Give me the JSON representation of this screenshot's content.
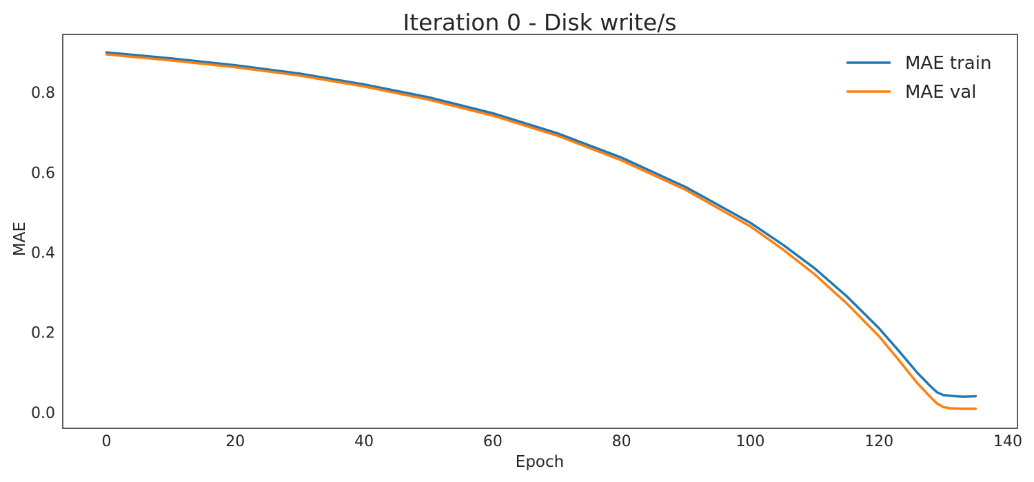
{
  "chart_data": {
    "type": "line",
    "title": "Iteration 0 - Disk write/s",
    "xlabel": "Epoch",
    "ylabel": "MAE",
    "xlim": [
      -6.8,
      141.5
    ],
    "ylim": [
      -0.04,
      0.945
    ],
    "xticks": [
      0,
      20,
      40,
      60,
      80,
      100,
      120,
      140
    ],
    "yticks": [
      0.0,
      0.2,
      0.4,
      0.6,
      0.8
    ],
    "xtick_labels": [
      "0",
      "20",
      "40",
      "60",
      "80",
      "100",
      "120",
      "140"
    ],
    "ytick_labels": [
      "0.0",
      "0.2",
      "0.4",
      "0.6",
      "0.8"
    ],
    "grid": false,
    "legend_position": "top-right",
    "series": [
      {
        "name": "MAE train",
        "color": "#1f77b4",
        "x": [
          0,
          10,
          20,
          30,
          40,
          50,
          60,
          70,
          80,
          90,
          100,
          105,
          110,
          115,
          120,
          123,
          126,
          128,
          129,
          130,
          132,
          133,
          135
        ],
        "y": [
          0.9,
          0.885,
          0.868,
          0.847,
          0.82,
          0.788,
          0.748,
          0.698,
          0.637,
          0.563,
          0.474,
          0.42,
          0.36,
          0.29,
          0.21,
          0.155,
          0.098,
          0.065,
          0.05,
          0.043,
          0.04,
          0.039,
          0.04
        ]
      },
      {
        "name": "MAE val",
        "color": "#ff7f0e",
        "x": [
          0,
          10,
          20,
          30,
          40,
          50,
          60,
          70,
          80,
          90,
          100,
          105,
          110,
          115,
          120,
          123,
          126,
          128,
          129,
          130,
          131,
          133,
          135
        ],
        "y": [
          0.895,
          0.88,
          0.863,
          0.842,
          0.815,
          0.782,
          0.742,
          0.692,
          0.63,
          0.556,
          0.465,
          0.408,
          0.345,
          0.272,
          0.19,
          0.132,
          0.072,
          0.038,
          0.022,
          0.013,
          0.01,
          0.009,
          0.009
        ]
      }
    ]
  }
}
